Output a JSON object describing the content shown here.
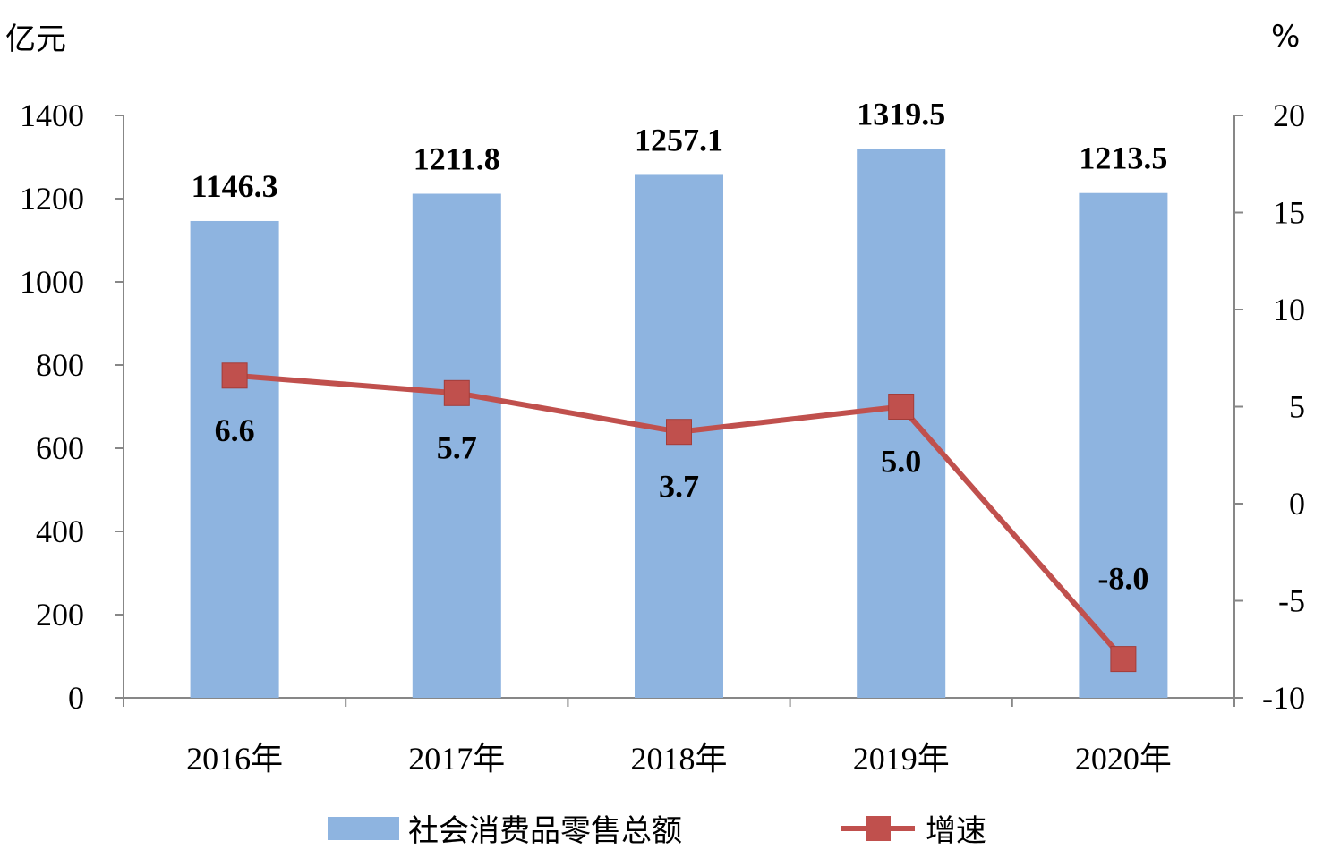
{
  "chart_data": {
    "type": "bar",
    "categories": [
      "2016年",
      "2017年",
      "2018年",
      "2019年",
      "2020年"
    ],
    "series": [
      {
        "name": "社会消费品零售总额",
        "type": "bar",
        "axis": "left",
        "values": [
          1146.3,
          1211.8,
          1257.1,
          1319.5,
          1213.5
        ],
        "labels": [
          "1146.3",
          "1211.8",
          "1257.1",
          "1319.5",
          "1213.5"
        ],
        "color": "#8EB4E0"
      },
      {
        "name": "增速",
        "type": "line",
        "axis": "right",
        "values": [
          6.6,
          5.7,
          3.7,
          5.0,
          -8.0
        ],
        "labels": [
          "6.6",
          "5.7",
          "3.7",
          "5.0",
          "-8.0"
        ],
        "color": "#C0504D"
      }
    ],
    "y_left": {
      "unit": "亿元",
      "range": [
        0,
        1400
      ],
      "ticks": [
        "0",
        "200",
        "400",
        "600",
        "800",
        "1000",
        "1200",
        "1400"
      ]
    },
    "y_right": {
      "unit": "%",
      "range": [
        -10,
        20
      ],
      "ticks": [
        "-10",
        "-5",
        "0",
        "5",
        "10",
        "15",
        "20"
      ]
    },
    "legend_position": "bottom",
    "grid": false
  }
}
